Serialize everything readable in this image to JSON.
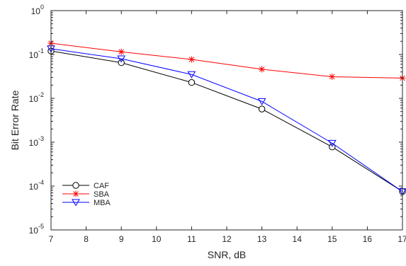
{
  "chart_data": {
    "type": "line",
    "title": "",
    "xlabel": "SNR, dB",
    "ylabel": "Bit Error Rate",
    "xlim": [
      7,
      17
    ],
    "ylim": [
      1e-05,
      1
    ],
    "yscale": "log",
    "x_ticks": [
      7,
      8,
      9,
      10,
      11,
      12,
      13,
      14,
      15,
      16,
      17
    ],
    "x_tick_labels": [
      "7",
      "8",
      "9",
      "10",
      "11",
      "12",
      "13",
      "14",
      "15",
      "16",
      "17"
    ],
    "y_ticks": [
      1e-05,
      0.0001,
      0.001,
      0.01,
      0.1,
      1
    ],
    "y_tick_labels": [
      {
        "base": "10",
        "exp": "-5"
      },
      {
        "base": "10",
        "exp": "-4"
      },
      {
        "base": "10",
        "exp": "-3"
      },
      {
        "base": "10",
        "exp": "-2"
      },
      {
        "base": "10",
        "exp": "-1"
      },
      {
        "base": "10",
        "exp": "0"
      }
    ],
    "grid": false,
    "legend_position": "bottom-left",
    "series": [
      {
        "name": "CAF",
        "color": "#000000",
        "marker": "circle",
        "x": [
          7,
          9,
          11,
          13,
          15,
          17
        ],
        "y": [
          0.12,
          0.065,
          0.023,
          0.0057,
          0.00078,
          7.5e-05
        ]
      },
      {
        "name": "SBA",
        "color": "#ff0000",
        "marker": "star",
        "x": [
          7,
          9,
          11,
          13,
          15,
          17
        ],
        "y": [
          0.18,
          0.115,
          0.077,
          0.046,
          0.031,
          0.029
        ]
      },
      {
        "name": "MBA",
        "color": "#0000ff",
        "marker": "triangle-down",
        "x": [
          7,
          9,
          11,
          13,
          15,
          17
        ],
        "y": [
          0.135,
          0.08,
          0.035,
          0.0085,
          0.00095,
          7.5e-05
        ]
      }
    ]
  }
}
